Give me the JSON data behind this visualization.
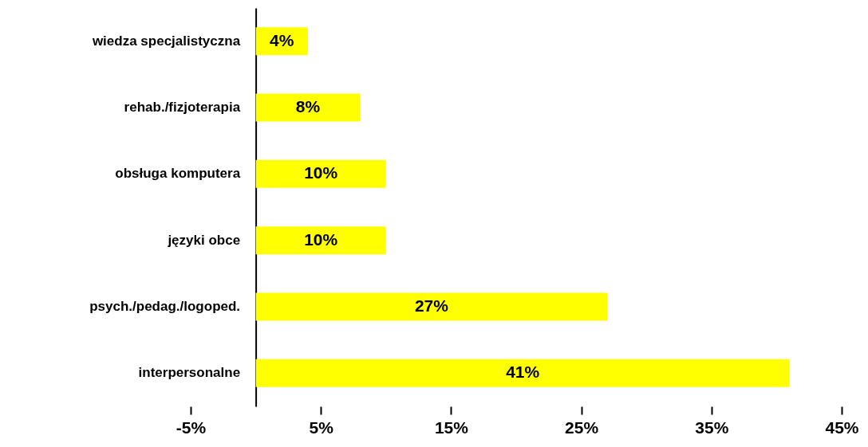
{
  "chart_data": {
    "type": "bar",
    "orientation": "horizontal",
    "categories": [
      "wiedza specjalistyczna",
      "rehab./fizjoterapia",
      "obsługa komputera",
      "języki obce",
      "psych./pedag./logoped.",
      "interpersonalne"
    ],
    "values": [
      4,
      8,
      10,
      10,
      27,
      41
    ],
    "value_labels": [
      "4%",
      "8%",
      "10%",
      "10%",
      "27%",
      "41%"
    ],
    "color": "#ffff00",
    "xlim": [
      -5,
      45
    ],
    "xticks": [
      {
        "value": -5,
        "label": "-5%"
      },
      {
        "value": 5,
        "label": "5%"
      },
      {
        "value": 15,
        "label": "15%"
      },
      {
        "value": 25,
        "label": "25%"
      },
      {
        "value": 35,
        "label": "35%"
      },
      {
        "value": 45,
        "label": "45%"
      }
    ],
    "grid": false
  }
}
